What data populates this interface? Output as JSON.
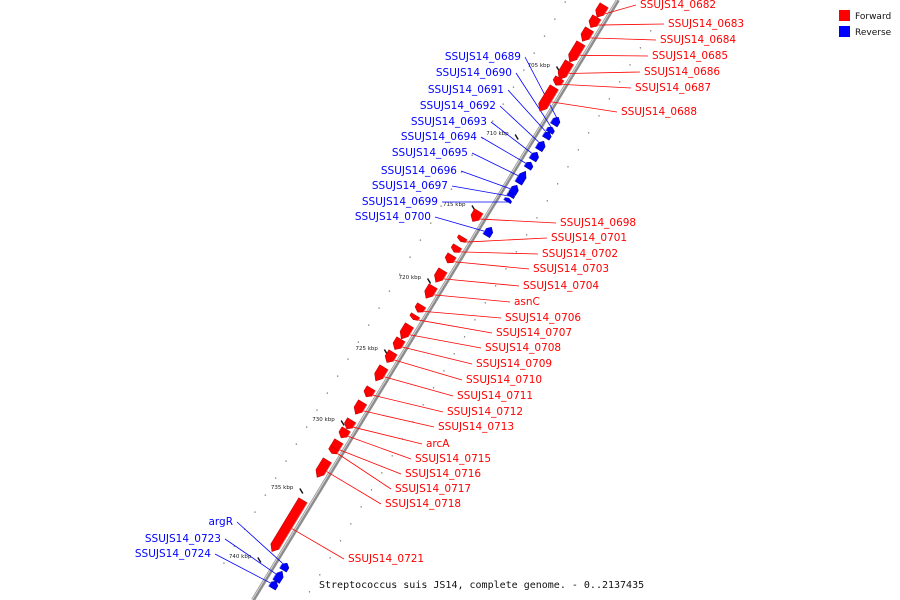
{
  "colors": {
    "forward": "#ff0000",
    "reverse": "#0000ff",
    "backbone": "#808080"
  },
  "legend": [
    {
      "key": "forward",
      "label": "Forward"
    },
    {
      "key": "reverse",
      "label": "Reverse"
    }
  ],
  "caption": "Streptococcus suis JS14, complete genome. - 0..2137435",
  "scale_ticks": [
    "705 kbp",
    "710 kbp",
    "715 kbp",
    "720 kbp",
    "725 kbp",
    "730 kbp",
    "735 kbp",
    "740 kbp"
  ],
  "genes": [
    {
      "name": "SSUJS14_0682",
      "strand": "forward"
    },
    {
      "name": "SSUJS14_0683",
      "strand": "forward"
    },
    {
      "name": "SSUJS14_0684",
      "strand": "forward"
    },
    {
      "name": "SSUJS14_0685",
      "strand": "forward"
    },
    {
      "name": "SSUJS14_0686",
      "strand": "forward"
    },
    {
      "name": "SSUJS14_0687",
      "strand": "forward"
    },
    {
      "name": "SSUJS14_0688",
      "strand": "forward"
    },
    {
      "name": "SSUJS14_0689",
      "strand": "reverse"
    },
    {
      "name": "SSUJS14_0690",
      "strand": "reverse"
    },
    {
      "name": "SSUJS14_0691",
      "strand": "reverse"
    },
    {
      "name": "SSUJS14_0692",
      "strand": "reverse"
    },
    {
      "name": "SSUJS14_0693",
      "strand": "reverse"
    },
    {
      "name": "SSUJS14_0694",
      "strand": "reverse"
    },
    {
      "name": "SSUJS14_0695",
      "strand": "reverse"
    },
    {
      "name": "SSUJS14_0696",
      "strand": "reverse"
    },
    {
      "name": "SSUJS14_0697",
      "strand": "reverse"
    },
    {
      "name": "SSUJS14_0699",
      "strand": "reverse"
    },
    {
      "name": "SSUJS14_0700",
      "strand": "reverse"
    },
    {
      "name": "SSUJS14_0698",
      "strand": "forward"
    },
    {
      "name": "SSUJS14_0701",
      "strand": "forward"
    },
    {
      "name": "SSUJS14_0702",
      "strand": "forward"
    },
    {
      "name": "SSUJS14_0703",
      "strand": "forward"
    },
    {
      "name": "SSUJS14_0704",
      "strand": "forward"
    },
    {
      "name": "asnC",
      "strand": "forward"
    },
    {
      "name": "SSUJS14_0706",
      "strand": "forward"
    },
    {
      "name": "SSUJS14_0707",
      "strand": "forward"
    },
    {
      "name": "SSUJS14_0708",
      "strand": "forward"
    },
    {
      "name": "SSUJS14_0709",
      "strand": "forward"
    },
    {
      "name": "SSUJS14_0710",
      "strand": "forward"
    },
    {
      "name": "SSUJS14_0711",
      "strand": "forward"
    },
    {
      "name": "SSUJS14_0712",
      "strand": "forward"
    },
    {
      "name": "SSUJS14_0713",
      "strand": "forward"
    },
    {
      "name": "arcA",
      "strand": "forward"
    },
    {
      "name": "SSUJS14_0715",
      "strand": "forward"
    },
    {
      "name": "SSUJS14_0716",
      "strand": "forward"
    },
    {
      "name": "SSUJS14_0717",
      "strand": "forward"
    },
    {
      "name": "SSUJS14_0718",
      "strand": "forward"
    },
    {
      "name": "SSUJS14_0721",
      "strand": "forward"
    },
    {
      "name": "argR",
      "strand": "reverse"
    },
    {
      "name": "SSUJS14_0723",
      "strand": "reverse"
    },
    {
      "name": "SSUJS14_0724",
      "strand": "reverse"
    }
  ]
}
